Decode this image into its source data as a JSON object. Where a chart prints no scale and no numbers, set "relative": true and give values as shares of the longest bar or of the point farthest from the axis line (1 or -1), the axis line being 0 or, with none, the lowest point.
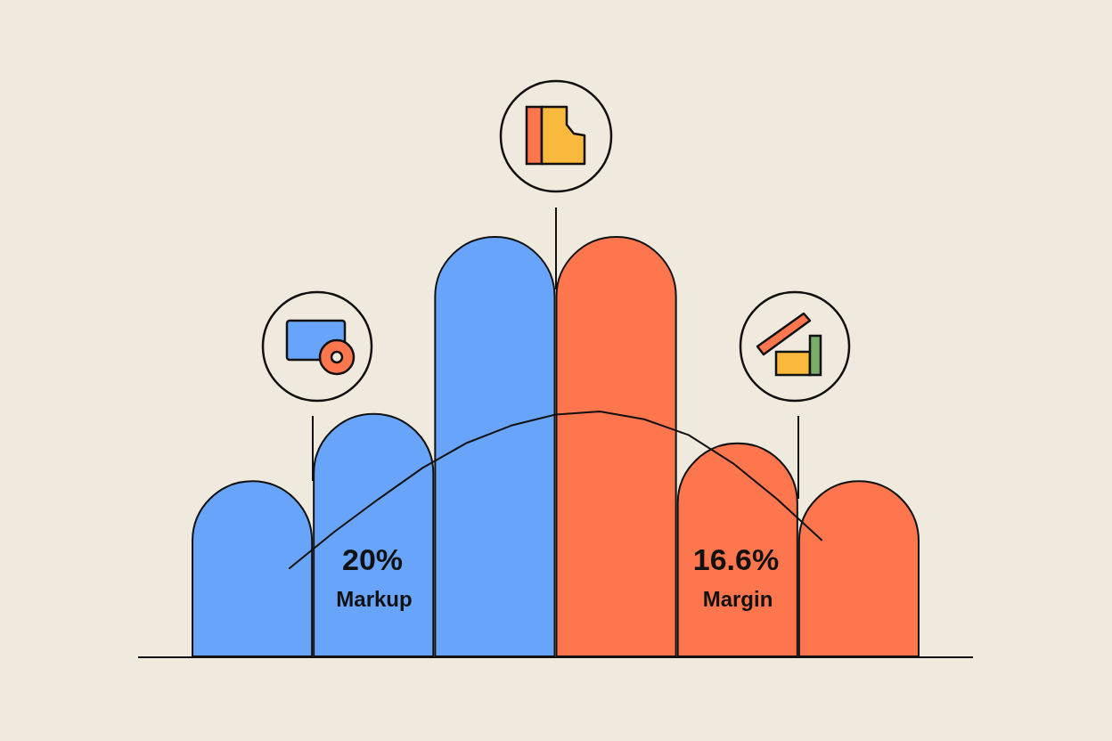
{
  "chart_data": [
    {
      "type": "bar",
      "relative": true,
      "categories": [
        null,
        null,
        null,
        null,
        null,
        null
      ],
      "series": [
        {
          "colors": [
            "#68a4f9",
            "#68a4f9",
            "#68a4f9",
            "#fe764d",
            "#fe764d",
            "#fe764d"
          ],
          "values": [
            0.42,
            0.58,
            1,
            1,
            0.51,
            0.42
          ]
        }
      ],
      "annotations": [
        "20%",
        "Markup",
        "16.6%",
        "Margin"
      ]
    },
    {
      "type": "line",
      "relative": true,
      "categories": [
        null,
        null,
        null,
        null,
        null,
        null,
        null,
        null,
        null,
        null,
        null,
        null,
        null
      ],
      "series": [
        {
          "color": "#111111",
          "values": [
            0,
            0.23,
            0.44,
            0.64,
            0.8,
            0.91,
            0.98,
            1,
            0.95,
            0.85,
            0.67,
            0.44,
            0.18
          ]
        }
      ],
      "marker": "none",
      "line_style": "solid"
    }
  ]
}
